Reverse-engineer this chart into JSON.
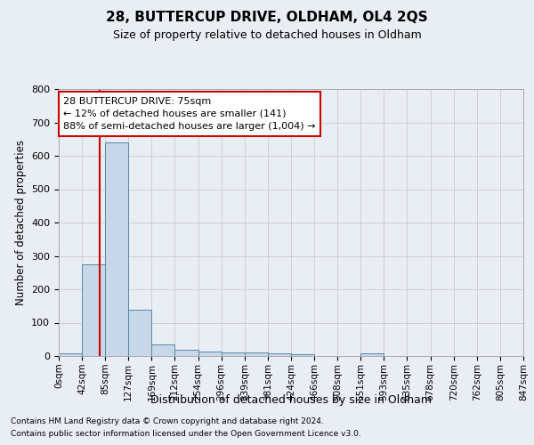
{
  "title": "28, BUTTERCUP DRIVE, OLDHAM, OL4 2QS",
  "subtitle": "Size of property relative to detached houses in Oldham",
  "xlabel": "Distribution of detached houses by size in Oldham",
  "ylabel": "Number of detached properties",
  "footer1": "Contains HM Land Registry data © Crown copyright and database right 2024.",
  "footer2": "Contains public sector information licensed under the Open Government Licence v3.0.",
  "bin_labels": [
    "0sqm",
    "42sqm",
    "85sqm",
    "127sqm",
    "169sqm",
    "212sqm",
    "254sqm",
    "296sqm",
    "339sqm",
    "381sqm",
    "424sqm",
    "466sqm",
    "508sqm",
    "551sqm",
    "593sqm",
    "635sqm",
    "678sqm",
    "720sqm",
    "762sqm",
    "805sqm",
    "847sqm"
  ],
  "bar_values": [
    8,
    275,
    640,
    138,
    35,
    18,
    13,
    10,
    10,
    8,
    5,
    0,
    0,
    7,
    0,
    0,
    0,
    0,
    0,
    0
  ],
  "bar_color": "#c8d8e8",
  "bar_edge_color": "#5588aa",
  "grid_color": "#cccccc",
  "background_color": "#e8eef4",
  "property_line_x": 75,
  "bin_width": 42.5,
  "ylim": [
    0,
    800
  ],
  "yticks": [
    0,
    100,
    200,
    300,
    400,
    500,
    600,
    700,
    800
  ],
  "annotation_text": "28 BUTTERCUP DRIVE: 75sqm\n← 12% of detached houses are smaller (141)\n88% of semi-detached houses are larger (1,004) →",
  "annotation_box_color": "#ffffff",
  "annotation_border_color": "#cc0000",
  "red_line_color": "#cc0000",
  "title_fontsize": 11,
  "subtitle_fontsize": 9,
  "ylabel_fontsize": 8.5,
  "xlabel_fontsize": 9,
  "tick_fontsize": 8,
  "annotation_fontsize": 8,
  "footer_fontsize": 6.5
}
